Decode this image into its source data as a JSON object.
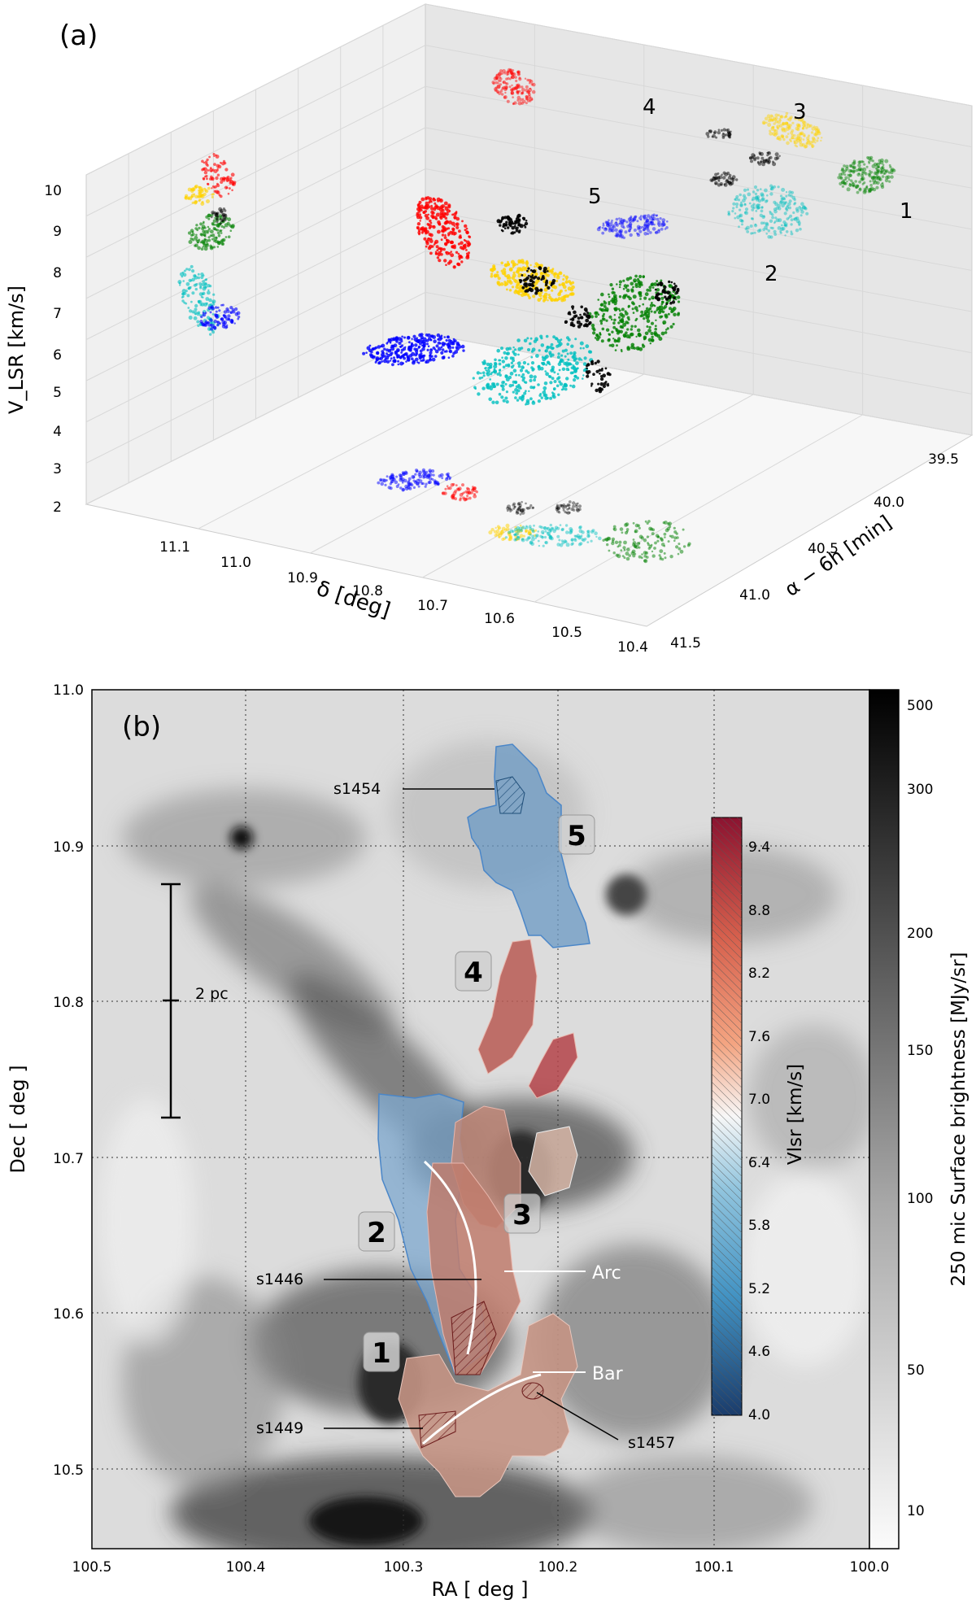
{
  "chart_data": [
    {
      "type": "scatter",
      "panel_label": "(a)",
      "zlabel": "V_LSR [km/s]",
      "xlabel": "α − 6h [min]",
      "ylabel": "δ [deg]",
      "z_ticks": [
        "10",
        "9",
        "8",
        "7",
        "6",
        "5",
        "4",
        "3",
        "2"
      ],
      "delta_ticks": [
        "11.1",
        "11.0",
        "10.9",
        "10.8",
        "10.7",
        "10.6",
        "10.5",
        "10.4"
      ],
      "alpha_ticks": [
        "39.5",
        "40.0",
        "40.5",
        "41.0",
        "41.5"
      ],
      "zlim": [
        2,
        10
      ],
      "grid": true,
      "clusters": [
        {
          "id": "1",
          "color": "#008000"
        },
        {
          "id": "2",
          "color": "#00bfbf"
        },
        {
          "id": "3",
          "color": "#ffd200"
        },
        {
          "id": "4",
          "color": "#ff0000"
        },
        {
          "id": "5",
          "color": "#0000ff"
        },
        {
          "id": "",
          "color": "#000000"
        }
      ]
    },
    {
      "type": "heatmap",
      "panel_label": "(b)",
      "xlabel": "RA [ deg ]",
      "ylabel": "Dec [ deg ]",
      "xlim": [
        100.5,
        100.0
      ],
      "ylim": [
        10.45,
        11.0
      ],
      "x_ticks": [
        "100.5",
        "100.4",
        "100.3",
        "100.2",
        "100.1",
        "100.0"
      ],
      "y_ticks": [
        "11.0",
        "10.9",
        "10.8",
        "10.7",
        "10.6",
        "10.5"
      ],
      "grid": true,
      "colorbar_label": "250 mic Surface brightness  [MJy/sr]",
      "colorbar_ticks": [
        "500",
        "300",
        "200",
        "150",
        "100",
        "50",
        "10"
      ],
      "inset_colorbar_label": "Vlsr [km/s]",
      "inset_colorbar_ticks": [
        "9.4",
        "8.8",
        "8.2",
        "7.6",
        "7.0",
        "6.4",
        "5.8",
        "5.2",
        "4.6",
        "4.0"
      ],
      "scale_bar_label": "2 pc",
      "region_labels": [
        {
          "text": "1",
          "color": "#008000"
        },
        {
          "text": "2",
          "color": "#00bfbf"
        },
        {
          "text": "3",
          "color": "#ffd200"
        },
        {
          "text": "4",
          "color": "#ff0000"
        },
        {
          "text": "5",
          "color": "#0000ff"
        }
      ],
      "annotations": [
        "s1454",
        "s1446",
        "s1449",
        "s1457",
        "Arc",
        "Bar"
      ]
    }
  ]
}
